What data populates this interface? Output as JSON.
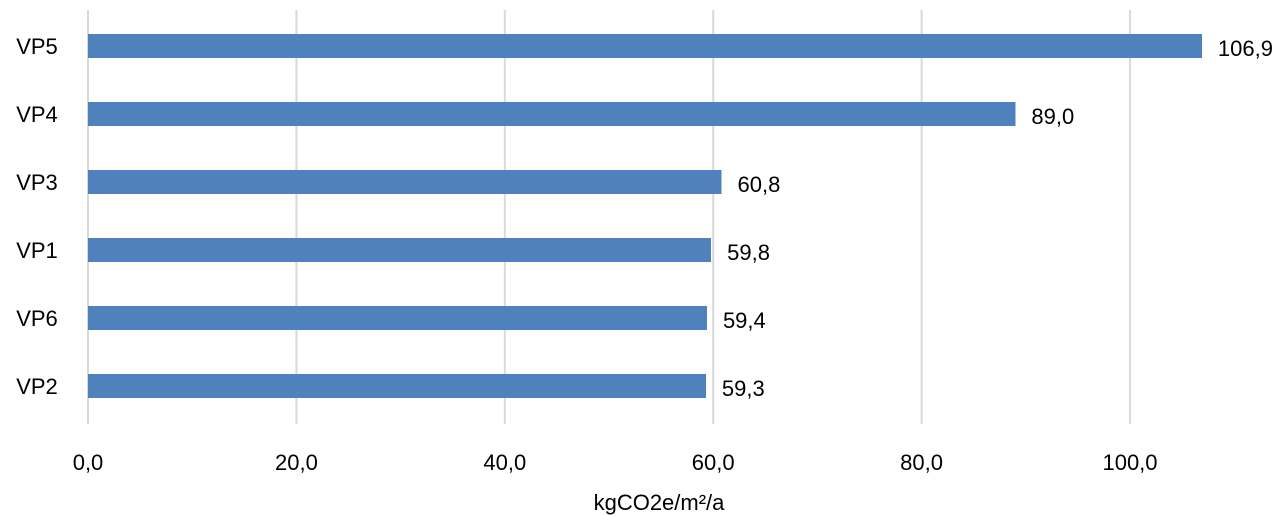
{
  "chart_data": {
    "type": "bar",
    "orientation": "horizontal",
    "categories": [
      "VP5",
      "VP4",
      "VP3",
      "VP1",
      "VP6",
      "VP2"
    ],
    "values": [
      106.9,
      89.0,
      60.8,
      59.8,
      59.4,
      59.3
    ],
    "value_labels": [
      "106,9",
      "89,0",
      "60,8",
      "59,8",
      "59,4",
      "59,3"
    ],
    "title": "",
    "xlabel": "kgCO2e/m²/a",
    "ylabel": "",
    "xlim": [
      0,
      110
    ],
    "x_ticks": [
      0,
      20,
      40,
      60,
      80,
      100
    ],
    "x_tick_labels": [
      "0,0",
      "20,0",
      "40,0",
      "60,0",
      "80,0",
      "100,0"
    ],
    "grid": "vertical",
    "legend": "none",
    "bar_color": "#4f81bd",
    "grid_color": "#d9d9d9"
  }
}
